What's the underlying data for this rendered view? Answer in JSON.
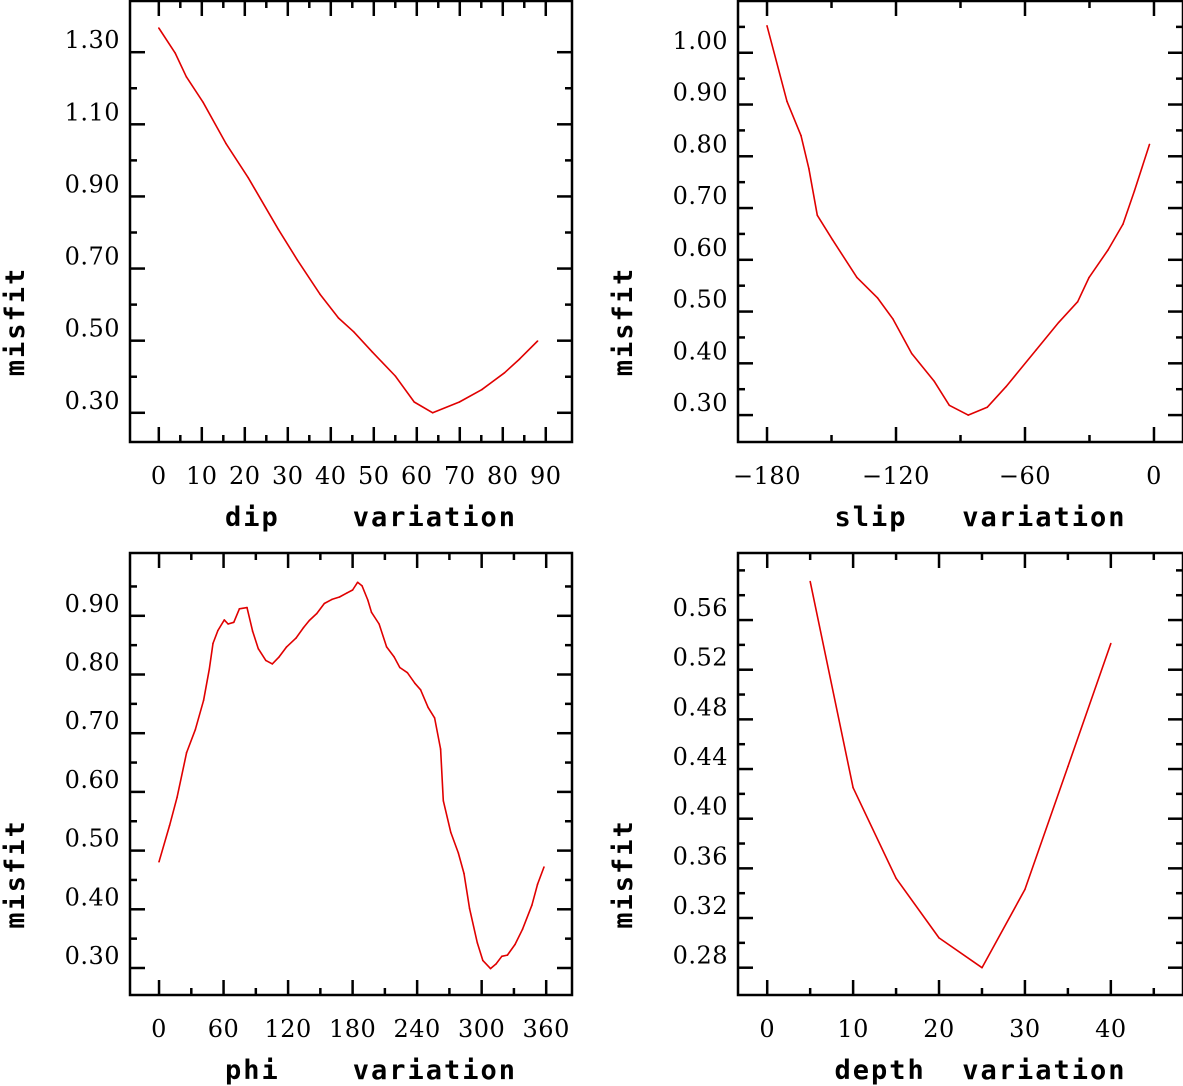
{
  "chart_data": [
    {
      "id": "dip",
      "type": "line",
      "title": "",
      "xlabel": "dip    variation",
      "ylabel": "misfit",
      "xlim": [
        -6.7,
        96.1
      ],
      "ylim": [
        0.219,
        1.442
      ],
      "grid": false,
      "line_color": "#e00000",
      "x_major_ticks": [
        0,
        10,
        20,
        30,
        40,
        50,
        60,
        70,
        80,
        90
      ],
      "x_tick_labels": [
        "0",
        "10",
        "20",
        "30",
        "40",
        "50",
        "60",
        "70",
        "80",
        "90"
      ],
      "x_minor_ticks": [
        5,
        15,
        25,
        35,
        45,
        55,
        65,
        75,
        85
      ],
      "y_major_ticks": [
        0.3,
        0.5,
        0.7,
        0.9,
        1.1,
        1.3
      ],
      "y_tick_labels": [
        "0.30",
        "0.50",
        "0.70",
        "0.90",
        "1.10",
        "1.30"
      ],
      "y_minor_ticks": [
        0.4,
        0.6,
        0.8,
        1.0,
        1.2
      ],
      "series": [
        {
          "name": "misfit",
          "x": [
            0,
            3.8,
            6.4,
            10.3,
            15.6,
            20.8,
            27.8,
            32.2,
            37.5,
            41.8,
            45.3,
            49.7,
            55.0,
            59.4,
            63.7,
            69.9,
            75.1,
            80.4,
            83.9,
            88.1
          ],
          "y": [
            1.367,
            1.298,
            1.232,
            1.161,
            1.047,
            0.952,
            0.809,
            0.724,
            0.629,
            0.563,
            0.525,
            0.468,
            0.402,
            0.33,
            0.3,
            0.33,
            0.364,
            0.411,
            0.449,
            0.499
          ]
        }
      ]
    },
    {
      "id": "slip",
      "type": "line",
      "title": "",
      "xlabel": "slip   variation",
      "ylabel": "misfit",
      "xlim": [
        -193.5,
        13.5
      ],
      "ylim": [
        0.248,
        1.1
      ],
      "grid": false,
      "line_color": "#e00000",
      "x_major_ticks": [
        -180,
        -120,
        -60,
        0
      ],
      "x_tick_labels": [
        "−180",
        "−120",
        "−60",
        "0"
      ],
      "x_minor_ticks": [
        -150,
        -90,
        -30
      ],
      "y_major_ticks": [
        0.3,
        0.4,
        0.5,
        0.6,
        0.7,
        0.8,
        0.9,
        1.0
      ],
      "y_tick_labels": [
        "0.30",
        "0.40",
        "0.50",
        "0.60",
        "0.70",
        "0.80",
        "0.90",
        "1.00"
      ],
      "y_minor_ticks": [
        0.35,
        0.45,
        0.55,
        0.65,
        0.75,
        0.85,
        0.95,
        1.05
      ],
      "series": [
        {
          "name": "misfit",
          "x": [
            -180,
            -170.7,
            -164.2,
            -160.5,
            -156.6,
            -149.6,
            -138.2,
            -128.5,
            -121.5,
            -112.7,
            -102.2,
            -95.2,
            -86.4,
            -77.6,
            -68.8,
            -54.8,
            -44.3,
            -35.5,
            -30.2,
            -21.4,
            -14.4,
            -9.1,
            -2.1
          ],
          "y": [
            1.052,
            0.906,
            0.84,
            0.776,
            0.686,
            0.639,
            0.566,
            0.526,
            0.486,
            0.419,
            0.365,
            0.319,
            0.3,
            0.315,
            0.355,
            0.426,
            0.479,
            0.519,
            0.566,
            0.619,
            0.669,
            0.733,
            0.823
          ]
        }
      ]
    },
    {
      "id": "phi",
      "type": "line",
      "title": "",
      "xlabel": "phi    variation",
      "ylabel": "misfit",
      "xlim": [
        -27,
        384
      ],
      "ylim": [
        0.254,
        1.007
      ],
      "grid": false,
      "line_color": "#e00000",
      "x_major_ticks": [
        0,
        60,
        120,
        180,
        240,
        300,
        360
      ],
      "x_tick_labels": [
        "0",
        "60",
        "120",
        "180",
        "240",
        "300",
        "360"
      ],
      "x_minor_ticks": [
        30,
        90,
        150,
        210,
        270,
        330
      ],
      "y_major_ticks": [
        0.3,
        0.4,
        0.5,
        0.6,
        0.7,
        0.8,
        0.9
      ],
      "y_tick_labels": [
        "0.30",
        "0.40",
        "0.50",
        "0.60",
        "0.70",
        "0.80",
        "0.90"
      ],
      "y_minor_ticks": [
        0.35,
        0.45,
        0.55,
        0.65,
        0.75,
        0.85,
        0.95
      ],
      "series": [
        {
          "name": "misfit",
          "x": [
            0,
            9.8,
            16.8,
            25.6,
            33.7,
            41.4,
            46.7,
            50.2,
            54.7,
            60.7,
            64.2,
            69.5,
            74.7,
            81.8,
            87.0,
            92.3,
            99.3,
            105.3,
            111.6,
            118.6,
            127.4,
            134.4,
            139.7,
            146.7,
            153.7,
            160.7,
            167.8,
            174.8,
            180.0,
            184.6,
            188.8,
            194.1,
            197.6,
            204.6,
            211.6,
            218.6,
            223.9,
            230.9,
            237.9,
            243.2,
            250.2,
            256.2,
            261.8,
            264.3,
            271.3,
            278.3,
            283.6,
            288.8,
            295.9,
            301.1,
            308.2,
            313.4,
            318.7,
            323.9,
            331.0,
            338.0,
            346.7,
            352.0,
            358.0
          ],
          "y": [
            0.481,
            0.543,
            0.591,
            0.667,
            0.706,
            0.756,
            0.809,
            0.853,
            0.875,
            0.893,
            0.886,
            0.889,
            0.912,
            0.914,
            0.874,
            0.844,
            0.824,
            0.818,
            0.83,
            0.847,
            0.862,
            0.88,
            0.892,
            0.904,
            0.921,
            0.928,
            0.932,
            0.939,
            0.944,
            0.957,
            0.951,
            0.927,
            0.906,
            0.886,
            0.847,
            0.83,
            0.812,
            0.803,
            0.785,
            0.774,
            0.744,
            0.726,
            0.673,
            0.585,
            0.531,
            0.496,
            0.461,
            0.401,
            0.343,
            0.313,
            0.299,
            0.307,
            0.32,
            0.322,
            0.34,
            0.366,
            0.407,
            0.443,
            0.472
          ]
        }
      ]
    },
    {
      "id": "depth",
      "type": "line",
      "title": "",
      "xlabel": "depth  variation",
      "ylabel": "misfit",
      "xlim": [
        -3.4,
        48.4
      ],
      "ylim": [
        0.258,
        0.614
      ],
      "grid": false,
      "line_color": "#e00000",
      "x_major_ticks": [
        0,
        10,
        20,
        30,
        40
      ],
      "x_tick_labels": [
        "0",
        "10",
        "20",
        "30",
        "40"
      ],
      "x_minor_ticks": [
        5,
        15,
        25,
        35,
        45
      ],
      "y_major_ticks": [
        0.28,
        0.32,
        0.36,
        0.4,
        0.44,
        0.48,
        0.52,
        0.56
      ],
      "y_tick_labels": [
        "0.28",
        "0.32",
        "0.36",
        "0.40",
        "0.44",
        "0.48",
        "0.52",
        "0.56"
      ],
      "y_minor_ticks": [
        0.3,
        0.34,
        0.38,
        0.42,
        0.46,
        0.5,
        0.54,
        0.58,
        0.6
      ],
      "series": [
        {
          "name": "misfit",
          "x": [
            5,
            10,
            15,
            20,
            25,
            30,
            35,
            40
          ],
          "y": [
            0.591,
            0.425,
            0.352,
            0.304,
            0.28,
            0.343,
            0.442,
            0.541
          ]
        }
      ]
    }
  ]
}
